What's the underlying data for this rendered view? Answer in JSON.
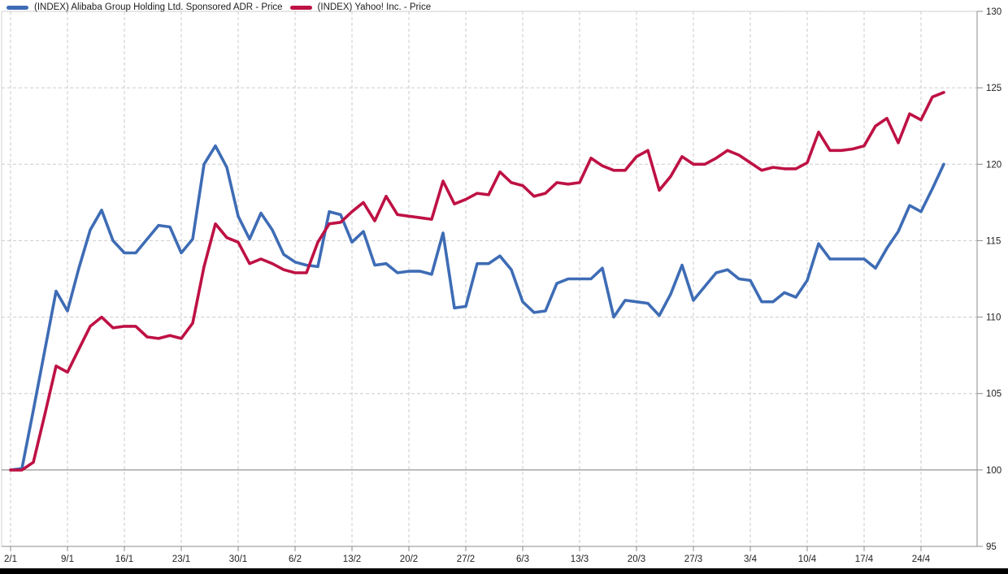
{
  "chart_data": {
    "type": "line",
    "title": "",
    "xlabel": "",
    "ylabel": "",
    "ylim": [
      95,
      130
    ],
    "y_ticks": [
      130,
      125,
      120,
      115,
      110,
      105,
      100,
      95
    ],
    "x_tick_labels": [
      "2/1",
      "9/1",
      "16/1",
      "23/1",
      "30/1",
      "6/2",
      "13/2",
      "20/2",
      "27/2",
      "6/3",
      "13/3",
      "20/3",
      "27/3",
      "3/4",
      "10/4",
      "17/4",
      "24/4"
    ],
    "points_per_week": 5,
    "grid": "light dashed gridlines; solid gray baseline at 100",
    "legend_position": "top-left",
    "baseline_value": 100,
    "series": [
      {
        "name": "(INDEX) Alibaba Group Holding Ltd. Sponsored ADR - Price",
        "color": "#3e6cb5",
        "values": [
          100,
          100.1,
          103.9,
          107.8,
          111.7,
          110.4,
          113.2,
          115.7,
          117.0,
          115.0,
          114.2,
          114.2,
          115.1,
          116.0,
          115.9,
          114.2,
          115.1,
          120.0,
          121.2,
          119.8,
          116.6,
          115.1,
          116.8,
          115.7,
          114.1,
          113.6,
          113.4,
          113.3,
          116.9,
          116.7,
          114.9,
          115.6,
          113.4,
          113.5,
          112.9,
          113.0,
          113.0,
          112.8,
          115.5,
          110.6,
          110.7,
          113.5,
          113.5,
          114.0,
          113.1,
          111.0,
          110.3,
          110.4,
          112.2,
          112.5,
          112.5,
          112.5,
          113.2,
          110.0,
          111.1,
          111.0,
          110.9,
          110.1,
          111.5,
          113.4,
          111.1,
          112.0,
          112.9,
          113.1,
          112.5,
          112.4,
          111.0,
          111.0,
          111.6,
          111.3,
          112.4,
          114.8,
          113.8,
          113.8,
          113.8,
          113.8,
          113.2,
          114.5,
          115.6,
          117.3,
          116.9,
          118.4,
          120.0
        ]
      },
      {
        "name": "(INDEX) Yahoo! Inc. - Price",
        "color": "#be1144",
        "values": [
          100,
          100,
          100.5,
          103.6,
          106.8,
          106.4,
          107.9,
          109.4,
          110.0,
          109.3,
          109.4,
          109.4,
          108.7,
          108.6,
          108.8,
          108.6,
          109.6,
          113.3,
          116.1,
          115.2,
          114.9,
          113.5,
          113.8,
          113.5,
          113.1,
          112.9,
          112.9,
          114.9,
          116.1,
          116.2,
          116.9,
          117.5,
          116.3,
          117.9,
          116.7,
          116.6,
          116.5,
          116.4,
          118.9,
          117.4,
          117.7,
          118.1,
          118.0,
          119.5,
          118.8,
          118.6,
          117.9,
          118.1,
          118.8,
          118.7,
          118.8,
          120.4,
          119.9,
          119.6,
          119.6,
          120.5,
          120.9,
          118.3,
          119.2,
          120.5,
          120.0,
          120.0,
          120.4,
          120.9,
          120.6,
          120.1,
          119.6,
          119.8,
          119.7,
          119.7,
          120.1,
          122.1,
          120.9,
          120.9,
          121.0,
          121.2,
          122.5,
          123.0,
          121.4,
          123.3,
          122.9,
          124.4,
          124.7
        ]
      }
    ]
  },
  "colors": {
    "grid_dashed": "#cbcbcb",
    "baseline_100": "#7a7a7a",
    "axis_line": "#8c8c8c",
    "plot_border": "#d2d2d2",
    "tick_label": "#222222",
    "legend_text": "#1c1c1c",
    "bottom_bar": "#000000",
    "background": "#ffffff"
  }
}
